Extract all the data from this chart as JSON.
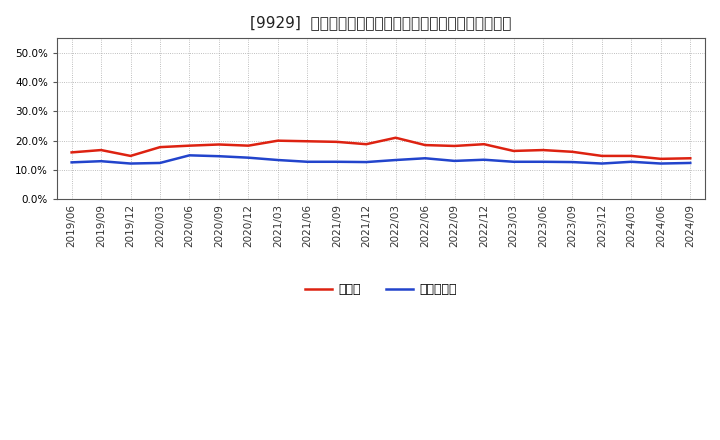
{
  "title": "[9929]  現預金、有利子負債の総資産に対する比率の推移",
  "x_labels": [
    "2019/06",
    "2019/09",
    "2019/12",
    "2020/03",
    "2020/06",
    "2020/09",
    "2020/12",
    "2021/03",
    "2021/06",
    "2021/09",
    "2021/12",
    "2022/03",
    "2022/06",
    "2022/09",
    "2022/12",
    "2023/03",
    "2023/06",
    "2023/09",
    "2023/12",
    "2024/03",
    "2024/06",
    "2024/09"
  ],
  "cash": [
    0.16,
    0.168,
    0.148,
    0.178,
    0.183,
    0.187,
    0.183,
    0.2,
    0.198,
    0.196,
    0.188,
    0.21,
    0.185,
    0.182,
    0.188,
    0.165,
    0.168,
    0.162,
    0.148,
    0.148,
    0.138,
    0.14
  ],
  "debt": [
    0.126,
    0.13,
    0.122,
    0.124,
    0.15,
    0.147,
    0.142,
    0.134,
    0.128,
    0.128,
    0.127,
    0.134,
    0.14,
    0.131,
    0.135,
    0.128,
    0.128,
    0.127,
    0.122,
    0.128,
    0.122,
    0.124
  ],
  "cash_color": "#dd2211",
  "debt_color": "#2244cc",
  "background_color": "#ffffff",
  "plot_bg_color": "#ffffff",
  "grid_color": "#aaaaaa",
  "ylim": [
    0.0,
    0.55
  ],
  "yticks": [
    0.0,
    0.1,
    0.2,
    0.3,
    0.4,
    0.5
  ],
  "legend_cash": "現預金",
  "legend_debt": "有利子負債",
  "title_fontsize": 11,
  "axis_fontsize": 7.5,
  "legend_fontsize": 9
}
